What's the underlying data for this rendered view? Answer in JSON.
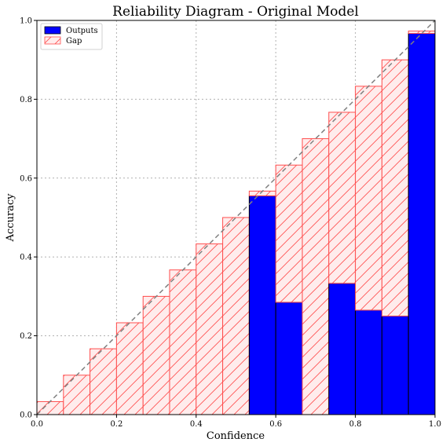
{
  "chart_data": {
    "type": "bar",
    "title": "Reliability Diagram - Original Model",
    "xlabel": "Confidence",
    "ylabel": "Accuracy",
    "xlim": [
      0.0,
      1.0
    ],
    "ylim": [
      0.0,
      1.0
    ],
    "grid": true,
    "legend_position": "top-left",
    "xticks": [
      "0.0",
      "0.2",
      "0.4",
      "0.6",
      "0.8",
      "1.0"
    ],
    "yticks": [
      "0.0",
      "0.2",
      "0.4",
      "0.6",
      "0.8",
      "1.0"
    ],
    "bin_edges": [
      0.0,
      0.0667,
      0.1333,
      0.2,
      0.2667,
      0.3333,
      0.4,
      0.4667,
      0.5333,
      0.6,
      0.6667,
      0.7333,
      0.8,
      0.8667,
      0.9333,
      1.0
    ],
    "series": [
      {
        "name": "Outputs",
        "color": "#0000ff",
        "values": [
          0,
          0,
          0,
          0,
          0,
          0,
          0,
          0,
          0.555,
          0.285,
          0,
          0.333,
          0.265,
          0.25,
          0.967
        ]
      },
      {
        "name": "Gap",
        "color": "#ff0000",
        "values": [
          0.033,
          0.1,
          0.167,
          0.233,
          0.3,
          0.367,
          0.433,
          0.5,
          0.567,
          0.633,
          0.7,
          0.767,
          0.833,
          0.9,
          0.973
        ]
      }
    ],
    "reference_line": {
      "from": [
        0,
        0
      ],
      "to": [
        1,
        1
      ],
      "style": "dashed",
      "color": "#808080"
    }
  }
}
